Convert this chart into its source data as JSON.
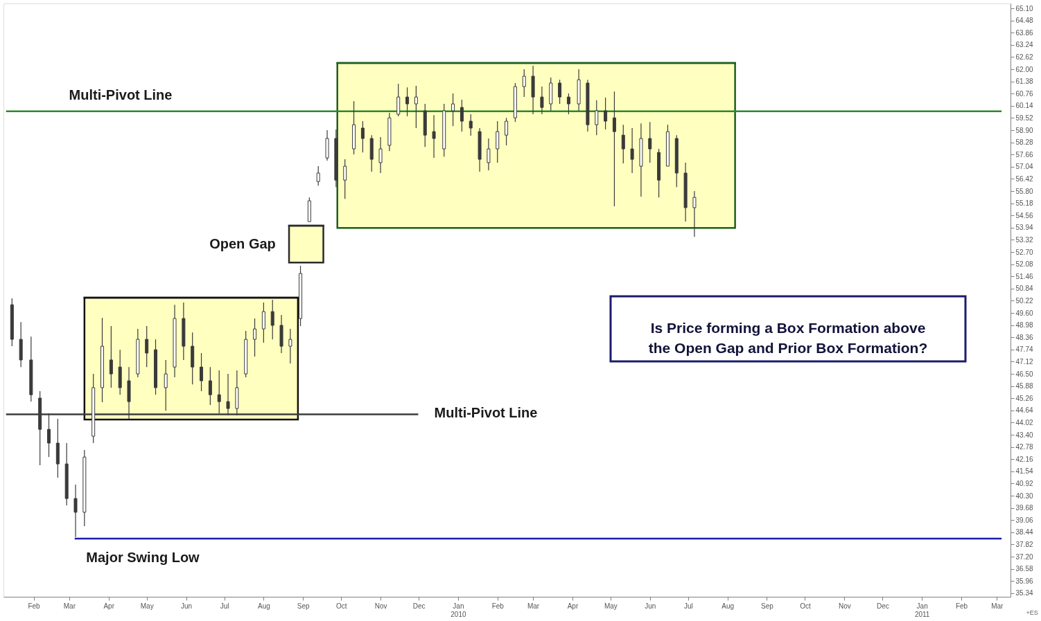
{
  "chart_data": {
    "type": "candlestick",
    "color": "#3a3a3a",
    "x": [
      "2009-01-15",
      "2009-01-22",
      "2009-01-30",
      "2009-02-06",
      "2009-02-13",
      "2009-02-20",
      "2009-02-27",
      "2009-03-06",
      "2009-03-13",
      "2009-03-20",
      "2009-03-27",
      "2009-04-03",
      "2009-04-10",
      "2009-04-17",
      "2009-04-24",
      "2009-05-01",
      "2009-05-08",
      "2009-05-16",
      "2009-05-23",
      "2009-05-30",
      "2009-06-06",
      "2009-06-13",
      "2009-06-20",
      "2009-06-27",
      "2009-07-04",
      "2009-07-11",
      "2009-07-18",
      "2009-07-25",
      "2009-08-01",
      "2009-08-08",
      "2009-08-15",
      "2009-08-22",
      "2009-08-30",
      "2009-09-06",
      "2009-09-13",
      "2009-09-20",
      "2009-09-27",
      "2009-10-04",
      "2009-10-11",
      "2009-10-18",
      "2009-10-25",
      "2009-11-01",
      "2009-11-08",
      "2009-11-15",
      "2009-11-22",
      "2009-11-29",
      "2009-12-06",
      "2009-12-13",
      "2009-12-21",
      "2009-12-28",
      "2010-01-04",
      "2010-01-11",
      "2010-01-18",
      "2010-01-25",
      "2010-02-01",
      "2010-02-08",
      "2010-02-15",
      "2010-02-22",
      "2010-03-01",
      "2010-03-08",
      "2010-03-15",
      "2010-03-22",
      "2010-03-29",
      "2010-04-06",
      "2010-04-13",
      "2010-04-20",
      "2010-04-27",
      "2010-05-04",
      "2010-05-11",
      "2010-05-18",
      "2010-05-25",
      "2010-06-01",
      "2010-06-08",
      "2010-06-15",
      "2010-06-22",
      "2010-06-29",
      "2010-07-06"
    ],
    "ohlc": [
      [
        50.02,
        50.34,
        47.91,
        48.26
      ],
      [
        48.26,
        49.14,
        46.85,
        47.21
      ],
      [
        47.21,
        48.4,
        45.09,
        45.44
      ],
      [
        45.27,
        45.62,
        41.85,
        43.68
      ],
      [
        43.68,
        44.49,
        42.27,
        42.98
      ],
      [
        42.98,
        44.21,
        41.22,
        41.92
      ],
      [
        41.92,
        42.98,
        39.81,
        40.16
      ],
      [
        40.16,
        40.87,
        38.2,
        39.46
      ],
      [
        39.46,
        42.63,
        38.75,
        42.27
      ],
      [
        43.33,
        46.5,
        42.98,
        45.8
      ],
      [
        45.8,
        49.35,
        45.06,
        47.91
      ],
      [
        47.21,
        48.93,
        45.8,
        46.5
      ],
      [
        46.85,
        47.73,
        45.44,
        45.8
      ],
      [
        46.15,
        46.85,
        44.21,
        45.09
      ],
      [
        46.5,
        48.79,
        46.33,
        48.26
      ],
      [
        48.26,
        48.93,
        46.85,
        47.56
      ],
      [
        47.73,
        48.26,
        45.44,
        45.8
      ],
      [
        45.8,
        47.21,
        44.63,
        46.5
      ],
      [
        46.85,
        50.02,
        46.33,
        49.32
      ],
      [
        49.32,
        50.13,
        47.21,
        47.91
      ],
      [
        47.91,
        48.61,
        45.97,
        46.85
      ],
      [
        46.85,
        47.56,
        45.62,
        46.15
      ],
      [
        46.15,
        46.85,
        44.92,
        45.44
      ],
      [
        45.44,
        46.68,
        44.49,
        45.09
      ],
      [
        45.09,
        46.5,
        44.39,
        44.74
      ],
      [
        44.74,
        46.68,
        44.39,
        45.8
      ],
      [
        46.5,
        48.69,
        46.33,
        48.26
      ],
      [
        48.26,
        49.32,
        47.38,
        48.79
      ],
      [
        48.79,
        50.13,
        48.09,
        49.67
      ],
      [
        49.67,
        50.27,
        48.26,
        48.97
      ],
      [
        48.97,
        49.5,
        47.56,
        47.91
      ],
      [
        47.91,
        48.79,
        47.03,
        48.26
      ],
      [
        49.32,
        52.0,
        48.93,
        51.61
      ],
      [
        54.25,
        55.48,
        54.25,
        55.31
      ],
      [
        56.29,
        57.07,
        56.08,
        56.72
      ],
      [
        57.49,
        58.9,
        57.35,
        58.48
      ],
      [
        58.48,
        58.94,
        56.01,
        56.36
      ],
      [
        56.36,
        57.42,
        55.41,
        57.07
      ],
      [
        57.95,
        60.38,
        57.67,
        59.18
      ],
      [
        59.01,
        59.36,
        57.77,
        58.48
      ],
      [
        58.48,
        58.65,
        56.79,
        57.42
      ],
      [
        57.25,
        58.55,
        56.72,
        57.95
      ],
      [
        58.13,
        59.78,
        57.84,
        59.53
      ],
      [
        59.71,
        61.26,
        59.61,
        60.59
      ],
      [
        60.59,
        61.08,
        59.61,
        60.24
      ],
      [
        60.24,
        61.16,
        59.01,
        60.59
      ],
      [
        59.89,
        60.24,
        58.05,
        58.65
      ],
      [
        58.83,
        59.67,
        57.49,
        58.48
      ],
      [
        57.95,
        60.24,
        57.56,
        59.89
      ],
      [
        59.89,
        60.77,
        59.11,
        60.24
      ],
      [
        60.06,
        60.45,
        58.83,
        59.36
      ],
      [
        59.36,
        59.71,
        58.62,
        59.01
      ],
      [
        58.83,
        59.01,
        56.79,
        57.42
      ],
      [
        57.25,
        58.48,
        56.86,
        57.95
      ],
      [
        57.95,
        59.36,
        57.25,
        58.83
      ],
      [
        58.65,
        59.53,
        58.13,
        59.36
      ],
      [
        59.53,
        61.3,
        59.32,
        61.12
      ],
      [
        61.12,
        62.0,
        60.59,
        61.65
      ],
      [
        61.65,
        62.18,
        59.71,
        60.59
      ],
      [
        60.59,
        61.12,
        59.71,
        60.06
      ],
      [
        60.24,
        61.58,
        59.89,
        61.3
      ],
      [
        61.3,
        61.47,
        60.24,
        60.59
      ],
      [
        60.59,
        60.77,
        59.71,
        60.24
      ],
      [
        60.24,
        62.0,
        59.89,
        61.47
      ],
      [
        61.3,
        61.47,
        58.83,
        59.18
      ],
      [
        59.18,
        60.43,
        58.65,
        59.89
      ],
      [
        59.89,
        60.56,
        58.94,
        59.36
      ],
      [
        59.53,
        60.87,
        55.03,
        58.83
      ],
      [
        58.65,
        59.18,
        57.21,
        57.95
      ],
      [
        57.95,
        59.01,
        56.72,
        57.42
      ],
      [
        57.07,
        59.25,
        55.52,
        58.48
      ],
      [
        58.48,
        59.32,
        57.25,
        57.95
      ],
      [
        57.77,
        57.95,
        55.48,
        56.36
      ],
      [
        57.07,
        59.18,
        57.07,
        58.83
      ],
      [
        58.48,
        58.65,
        56.01,
        56.72
      ],
      [
        56.72,
        57.25,
        54.25,
        54.96
      ],
      [
        54.96,
        55.8,
        53.48,
        55.48
      ]
    ],
    "series": [
      {
        "type": "line",
        "x": [
          "2009-03-13",
          "2009-08-28"
        ],
        "values": [
          50.38,
          50.38
        ],
        "lower": [
          44.18,
          44.18
        ],
        "upper": [
          50.38,
          50.38
        ],
        "color": "#111111"
      },
      {
        "type": "line",
        "x": [
          "2009-08-21",
          "2009-09-17"
        ],
        "values": [
          54.04,
          54.04
        ],
        "lower": [
          52.17,
          52.17
        ],
        "upper": [
          54.04,
          54.04
        ],
        "color": "#2b2b2b"
      },
      {
        "type": "line",
        "x": [
          "2009-09-28",
          "2010-08-07"
        ],
        "values": [
          62.32,
          62.32
        ],
        "lower": [
          53.93,
          53.93
        ],
        "upper": [
          62.32,
          62.32
        ],
        "color": "#1e5e1e"
      },
      {
        "type": "line",
        "x": [
          "2009-01-11",
          "2011-03-04"
        ],
        "values": [
          59.86,
          59.86
        ],
        "color": "#2a8a2a"
      },
      {
        "type": "line",
        "x": [
          "2009-01-11",
          "2009-11-30"
        ],
        "values": [
          44.44,
          44.44
        ],
        "color": "#3c3c3c"
      },
      {
        "type": "line",
        "x": [
          "2009-03-06",
          "2011-03-04"
        ],
        "values": [
          38.12,
          38.12
        ],
        "color": "#1a1aa8"
      }
    ],
    "xlim": [
      "2009-01-11",
      "2011-03-09"
    ],
    "xticks": [
      {
        "value": "2009-02",
        "label": "Feb"
      },
      {
        "value": "2009-03",
        "label": "Mar"
      },
      {
        "value": "2009-04",
        "label": "Apr"
      },
      {
        "value": "2009-05",
        "label": "May"
      },
      {
        "value": "2009-06",
        "label": "Jun"
      },
      {
        "value": "2009-07",
        "label": "Jul"
      },
      {
        "value": "2009-08",
        "label": "Aug"
      },
      {
        "value": "2009-09",
        "label": "Sep"
      },
      {
        "value": "2009-10",
        "label": "Oct"
      },
      {
        "value": "2009-11",
        "label": "Nov"
      },
      {
        "value": "2009-12",
        "label": "Dec"
      },
      {
        "value": "2010-01",
        "label": "Jan\n2010"
      },
      {
        "value": "2010-02",
        "label": "Feb"
      },
      {
        "value": "2010-03",
        "label": "Mar"
      },
      {
        "value": "2010-04",
        "label": "Apr"
      },
      {
        "value": "2010-05",
        "label": "May"
      },
      {
        "value": "2010-06",
        "label": "Jun"
      },
      {
        "value": "2010-07",
        "label": "Jul"
      },
      {
        "value": "2010-08",
        "label": "Aug"
      },
      {
        "value": "2010-09",
        "label": "Sep"
      },
      {
        "value": "2010-10",
        "label": "Oct"
      },
      {
        "value": "2010-11",
        "label": "Nov"
      },
      {
        "value": "2010-12",
        "label": "Dec"
      },
      {
        "value": "2011-01",
        "label": "Jan\n2011"
      },
      {
        "value": "2011-02",
        "label": "Feb"
      },
      {
        "value": "2011-03",
        "label": "Mar"
      }
    ],
    "ylim": [
      35.16,
      65.35
    ],
    "yticks": [
      35.34,
      35.96,
      36.58,
      {
        "value": 37.2,
        "label": "37.20"
      },
      37.82,
      38.44,
      39.06,
      39.68,
      {
        "value": 40.3,
        "label": "40.30"
      },
      40.92,
      41.54,
      42.16,
      42.78,
      {
        "value": 43.4,
        "label": "43.40"
      },
      44.02,
      44.64,
      45.26,
      45.88,
      {
        "value": 46.5,
        "label": "46.50"
      },
      47.12,
      47.74,
      48.36,
      48.98,
      {
        "value": 49.6,
        "label": "49.60"
      },
      50.22,
      50.84,
      51.46,
      52.08,
      {
        "value": 52.7,
        "label": "52.70"
      },
      53.32,
      53.94,
      54.56,
      55.18,
      {
        "value": 55.8,
        "label": "55.80"
      },
      56.42,
      57.04,
      57.66,
      58.28,
      {
        "value": 58.9,
        "label": "58.90"
      },
      59.52,
      60.14,
      60.76,
      61.38,
      {
        "value": 62,
        "label": "62.00"
      },
      62.62,
      63.24,
      63.86,
      64.48,
      {
        "value": 65.1,
        "label": "65.10"
      }
    ],
    "annotations": [
      "Multi-Pivot Line",
      "Open Gap",
      "Multi-Pivot Line",
      "Major Swing Low",
      "Is Price forming a Box Formation above\nthe Open Gap and Prior Box Formation?",
      "+ES"
    ]
  }
}
